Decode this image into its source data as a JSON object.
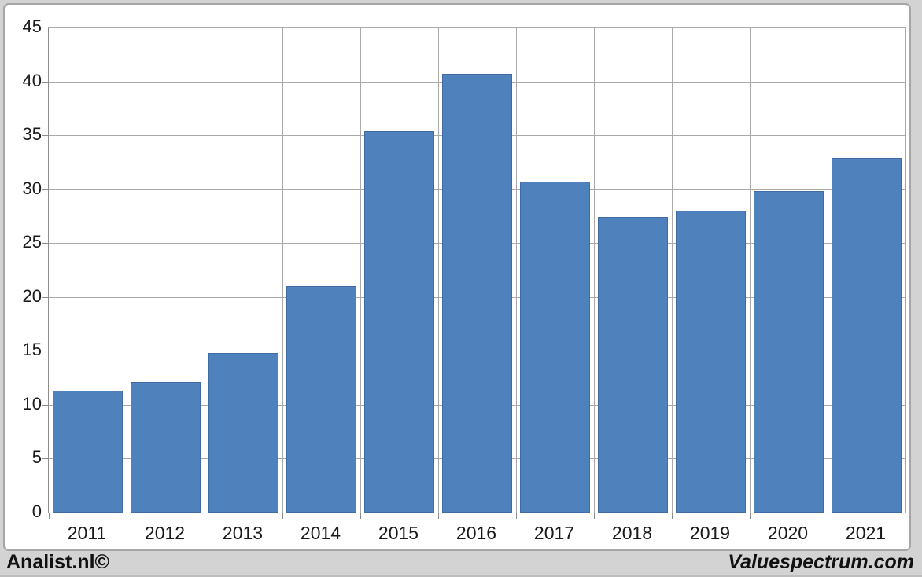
{
  "footer": {
    "left": "Analist.nl©",
    "right": "Valuespectrum.com"
  },
  "colors": {
    "bar": "#4f81bd",
    "bar_border": "#3f6da3",
    "grid": "#a9a9a9",
    "axis": "#8c8c8c",
    "card_border": "#a6a6a6",
    "card_bg": "#ffffff",
    "background": "#d3d3d3",
    "text": "#1a1a1a"
  },
  "chart_data": {
    "type": "bar",
    "title": "",
    "xlabel": "",
    "ylabel": "",
    "categories": [
      "2011",
      "2012",
      "2013",
      "2014",
      "2015",
      "2016",
      "2017",
      "2018",
      "2019",
      "2020",
      "2021"
    ],
    "values": [
      11.3,
      12.1,
      14.8,
      21.0,
      35.4,
      40.7,
      30.7,
      27.4,
      28.0,
      29.8,
      32.9
    ],
    "ylim": [
      0,
      45
    ],
    "yticks": [
      0,
      5,
      10,
      15,
      20,
      25,
      30,
      35,
      40,
      45
    ],
    "grid": "both",
    "legend": "none",
    "bar_color": "#4f81bd"
  }
}
